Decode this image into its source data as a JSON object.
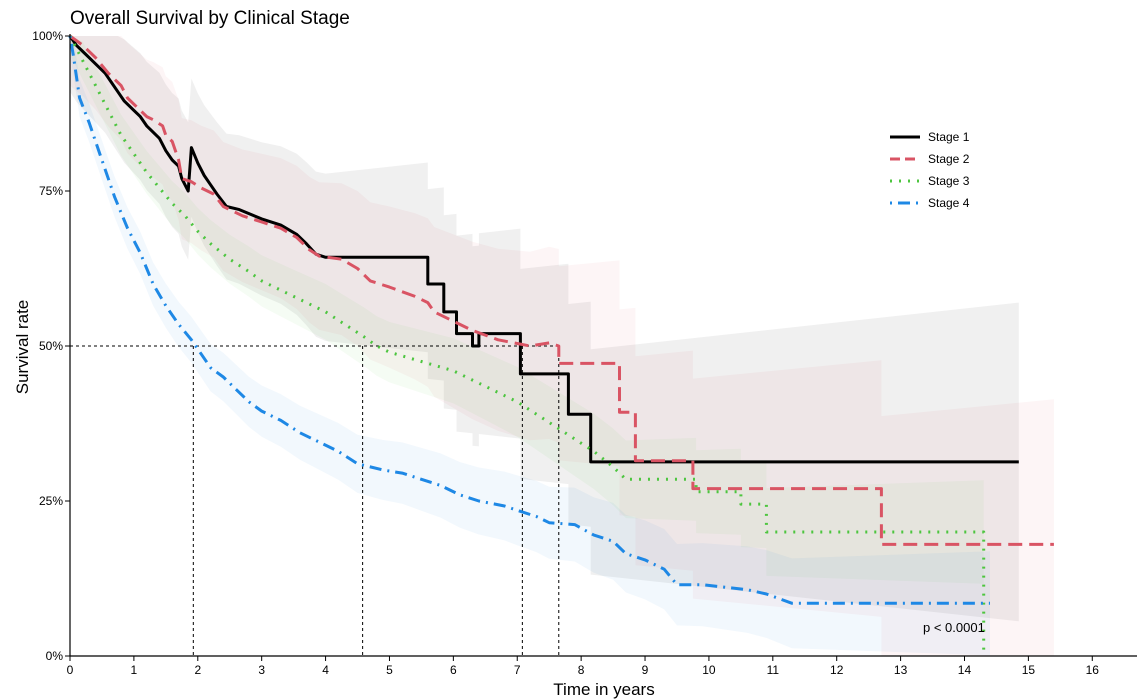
{
  "chart_data": {
    "type": "line",
    "title": "Overall Survival by Clinical Stage",
    "xlabel": "Time in years",
    "ylabel": "Survival rate",
    "xlim": [
      0,
      16.7
    ],
    "ylim": [
      0,
      1
    ],
    "x_ticks": [
      "0",
      "1",
      "2",
      "3",
      "4",
      "5",
      "6",
      "7",
      "8",
      "9",
      "10",
      "11",
      "12",
      "13",
      "14",
      "15",
      "16"
    ],
    "y_ticks": [
      "0%",
      "25%",
      "50%",
      "75%",
      "100%"
    ],
    "grid": false,
    "legend_position": "top-right",
    "annotation": "p < 0.0001",
    "median_reference": {
      "y": 0.5,
      "x_values": [
        1.93,
        4.58,
        7.08,
        7.65
      ]
    },
    "series": [
      {
        "name": "Stage 1",
        "color": "#000000",
        "style": "solid",
        "points": [
          [
            0,
            1
          ],
          [
            0.1,
            0.985
          ],
          [
            0.2,
            0.975
          ],
          [
            0.3,
            0.965
          ],
          [
            0.4,
            0.955
          ],
          [
            0.55,
            0.94
          ],
          [
            0.65,
            0.925
          ],
          [
            0.75,
            0.91
          ],
          [
            0.85,
            0.895
          ],
          [
            1.0,
            0.88
          ],
          [
            1.1,
            0.87
          ],
          [
            1.2,
            0.855
          ],
          [
            1.4,
            0.835
          ],
          [
            1.5,
            0.815
          ],
          [
            1.6,
            0.8
          ],
          [
            1.7,
            0.79
          ],
          [
            1.75,
            0.77
          ],
          [
            1.85,
            0.75
          ],
          [
            1.9,
            0.82
          ],
          [
            2.0,
            0.795
          ],
          [
            2.1,
            0.775
          ],
          [
            2.2,
            0.76
          ],
          [
            2.3,
            0.745
          ],
          [
            2.45,
            0.725
          ],
          [
            2.65,
            0.72
          ],
          [
            3.0,
            0.705
          ],
          [
            3.3,
            0.695
          ],
          [
            3.55,
            0.68
          ],
          [
            3.7,
            0.665
          ],
          [
            3.85,
            0.648
          ],
          [
            4.0,
            0.643
          ],
          [
            5.6,
            0.643
          ],
          [
            5.6,
            0.6
          ],
          [
            5.85,
            0.6
          ],
          [
            5.85,
            0.555
          ],
          [
            6.05,
            0.555
          ],
          [
            6.05,
            0.52
          ],
          [
            6.3,
            0.52
          ],
          [
            6.3,
            0.5
          ],
          [
            6.4,
            0.5
          ],
          [
            6.4,
            0.52
          ],
          [
            7.05,
            0.52
          ],
          [
            7.05,
            0.455
          ],
          [
            7.8,
            0.455
          ],
          [
            7.8,
            0.39
          ],
          [
            8.15,
            0.39
          ],
          [
            8.15,
            0.313
          ],
          [
            14.85,
            0.313
          ]
        ]
      },
      {
        "name": "Stage 2",
        "color": "#D95464",
        "style": "dashed",
        "points": [
          [
            0,
            1
          ],
          [
            0.2,
            0.985
          ],
          [
            0.4,
            0.965
          ],
          [
            0.6,
            0.94
          ],
          [
            0.8,
            0.92
          ],
          [
            0.9,
            0.9
          ],
          [
            1.0,
            0.89
          ],
          [
            1.2,
            0.87
          ],
          [
            1.3,
            0.865
          ],
          [
            1.45,
            0.855
          ],
          [
            1.5,
            0.84
          ],
          [
            1.6,
            0.83
          ],
          [
            1.7,
            0.8
          ],
          [
            1.75,
            0.77
          ],
          [
            1.9,
            0.765
          ],
          [
            2.05,
            0.755
          ],
          [
            2.25,
            0.745
          ],
          [
            2.4,
            0.725
          ],
          [
            2.7,
            0.71
          ],
          [
            3.0,
            0.7
          ],
          [
            3.3,
            0.69
          ],
          [
            3.55,
            0.675
          ],
          [
            3.75,
            0.655
          ],
          [
            3.9,
            0.645
          ],
          [
            4.25,
            0.64
          ],
          [
            4.5,
            0.625
          ],
          [
            4.7,
            0.605
          ],
          [
            5.0,
            0.595
          ],
          [
            5.4,
            0.58
          ],
          [
            5.6,
            0.57
          ],
          [
            5.7,
            0.555
          ],
          [
            6.0,
            0.54
          ],
          [
            6.3,
            0.525
          ],
          [
            6.7,
            0.51
          ],
          [
            7.2,
            0.5
          ],
          [
            7.5,
            0.505
          ],
          [
            7.65,
            0.5
          ],
          [
            7.65,
            0.472
          ],
          [
            8.6,
            0.472
          ],
          [
            8.6,
            0.393
          ],
          [
            8.85,
            0.393
          ],
          [
            8.85,
            0.315
          ],
          [
            9.75,
            0.315
          ],
          [
            9.75,
            0.27
          ],
          [
            12.7,
            0.27
          ],
          [
            12.7,
            0.18
          ],
          [
            15.4,
            0.18
          ]
        ]
      },
      {
        "name": "Stage 3",
        "color": "#4DC53F",
        "style": "dotted",
        "points": [
          [
            0,
            1
          ],
          [
            0.2,
            0.96
          ],
          [
            0.4,
            0.92
          ],
          [
            0.6,
            0.88
          ],
          [
            0.8,
            0.84
          ],
          [
            1.0,
            0.81
          ],
          [
            1.2,
            0.78
          ],
          [
            1.4,
            0.755
          ],
          [
            1.6,
            0.73
          ],
          [
            1.8,
            0.71
          ],
          [
            2.0,
            0.685
          ],
          [
            2.2,
            0.665
          ],
          [
            2.5,
            0.64
          ],
          [
            2.8,
            0.62
          ],
          [
            3.0,
            0.605
          ],
          [
            3.5,
            0.58
          ],
          [
            4.0,
            0.555
          ],
          [
            4.3,
            0.535
          ],
          [
            4.6,
            0.515
          ],
          [
            4.8,
            0.5
          ],
          [
            5.0,
            0.49
          ],
          [
            5.5,
            0.475
          ],
          [
            6.0,
            0.46
          ],
          [
            6.3,
            0.445
          ],
          [
            6.6,
            0.43
          ],
          [
            7.0,
            0.41
          ],
          [
            7.3,
            0.39
          ],
          [
            7.6,
            0.37
          ],
          [
            7.9,
            0.35
          ],
          [
            8.2,
            0.33
          ],
          [
            8.5,
            0.305
          ],
          [
            8.7,
            0.285
          ],
          [
            9.8,
            0.285
          ],
          [
            9.8,
            0.265
          ],
          [
            10.5,
            0.265
          ],
          [
            10.5,
            0.245
          ],
          [
            10.9,
            0.245
          ],
          [
            10.9,
            0.2
          ],
          [
            14.3,
            0.2
          ],
          [
            14.3,
            0.0
          ]
        ]
      },
      {
        "name": "Stage 4",
        "color": "#1E88E5",
        "style": "dot-dash",
        "points": [
          [
            0,
            1
          ],
          [
            0.05,
            0.97
          ],
          [
            0.15,
            0.9
          ],
          [
            0.3,
            0.86
          ],
          [
            0.5,
            0.8
          ],
          [
            0.7,
            0.74
          ],
          [
            0.9,
            0.69
          ],
          [
            1.1,
            0.65
          ],
          [
            1.3,
            0.6
          ],
          [
            1.5,
            0.565
          ],
          [
            1.7,
            0.535
          ],
          [
            1.9,
            0.51
          ],
          [
            2.0,
            0.495
          ],
          [
            2.2,
            0.465
          ],
          [
            2.4,
            0.45
          ],
          [
            2.6,
            0.43
          ],
          [
            2.8,
            0.41
          ],
          [
            3.0,
            0.395
          ],
          [
            3.3,
            0.38
          ],
          [
            3.6,
            0.36
          ],
          [
            3.9,
            0.345
          ],
          [
            4.2,
            0.33
          ],
          [
            4.5,
            0.31
          ],
          [
            4.9,
            0.3
          ],
          [
            5.2,
            0.295
          ],
          [
            5.5,
            0.285
          ],
          [
            5.8,
            0.275
          ],
          [
            6.1,
            0.26
          ],
          [
            6.4,
            0.25
          ],
          [
            6.8,
            0.242
          ],
          [
            7.0,
            0.235
          ],
          [
            7.3,
            0.225
          ],
          [
            7.5,
            0.215
          ],
          [
            7.9,
            0.212
          ],
          [
            8.2,
            0.195
          ],
          [
            8.5,
            0.185
          ],
          [
            8.7,
            0.165
          ],
          [
            9.0,
            0.155
          ],
          [
            9.3,
            0.14
          ],
          [
            9.5,
            0.115
          ],
          [
            9.9,
            0.115
          ],
          [
            10.6,
            0.107
          ],
          [
            10.9,
            0.1
          ],
          [
            11.3,
            0.085
          ],
          [
            14.4,
            0.085
          ]
        ]
      }
    ]
  }
}
